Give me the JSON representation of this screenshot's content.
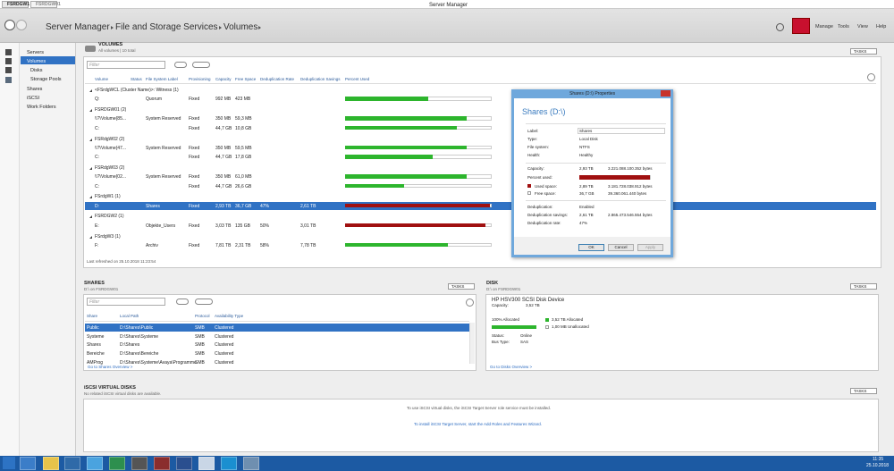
{
  "titlebar": {
    "tabs": [
      "FSRDGW1",
      "FSRDGW01"
    ],
    "title": "Server Manager"
  },
  "header": {
    "breadcrumb": [
      "Server Manager",
      "File and Storage Services",
      "Volumes"
    ],
    "menu": [
      "Manage",
      "Tools",
      "View",
      "Help"
    ]
  },
  "nav": {
    "items": [
      "Servers",
      "Volumes",
      "Disks",
      "Storage Pools",
      "Shares",
      "iSCSI",
      "Work Folders"
    ]
  },
  "volumes": {
    "title": "VOLUMES",
    "subtitle": "All volumes | 10 total",
    "tasks": "TASKS",
    "filter": "Filter",
    "columns": [
      "Volume",
      "Status",
      "File System Label",
      "Provisioning",
      "Capacity",
      "Free Space",
      "Deduplication Rate",
      "Deduplication Savings",
      "Percent Used"
    ],
    "groups": [
      {
        "name": "<FSrdgWCL (Cluster Name)>: Witness (1)",
        "rows": [
          {
            "volume": "Q:",
            "label": "Quorum",
            "provisioning": "Fixed",
            "capacity": "992 MB",
            "free": "423 MB",
            "percent_used": 57
          }
        ]
      },
      {
        "name": "FSRDGW01 (2)",
        "rows": [
          {
            "volume": "\\\\?\\Volume{85...",
            "label": "System Reserved",
            "provisioning": "Fixed",
            "capacity": "350 MB",
            "free": "59,3 MB",
            "percent_used": 83
          },
          {
            "volume": "C:",
            "provisioning": "Fixed",
            "capacity": "44,7 GB",
            "free": "10,8 GB",
            "percent_used": 76
          }
        ]
      },
      {
        "name": "FSRdgW02 (2)",
        "rows": [
          {
            "volume": "\\\\?\\Volume{47...",
            "label": "System Reserved",
            "provisioning": "Fixed",
            "capacity": "350 MB",
            "free": "59,5 MB",
            "percent_used": 83
          },
          {
            "volume": "C:",
            "provisioning": "Fixed",
            "capacity": "44,7 GB",
            "free": "17,8 GB",
            "percent_used": 60
          }
        ]
      },
      {
        "name": "FSRdgW03 (2)",
        "rows": [
          {
            "volume": "\\\\?\\Volume{02...",
            "label": "System Reserved",
            "provisioning": "Fixed",
            "capacity": "350 MB",
            "free": "61,0 MB",
            "percent_used": 83
          },
          {
            "volume": "C:",
            "provisioning": "Fixed",
            "capacity": "44,7 GB",
            "free": "26,6 GB",
            "percent_used": 40
          }
        ]
      },
      {
        "name": "FSrdgW1 (1)",
        "rows": [
          {
            "volume": "D:",
            "label": "Shares",
            "provisioning": "Fixed",
            "capacity": "2,93 TB",
            "free": "36,7 GB",
            "dedup_rate": "47%",
            "dedup_savings": "2,61 TB",
            "percent_used": 99
          }
        ]
      },
      {
        "name": "FSRDGW2 (1)",
        "rows": [
          {
            "volume": "E:",
            "label": "Objekte_Users",
            "provisioning": "Fixed",
            "capacity": "3,03 TB",
            "free": "135 GB",
            "dedup_rate": "50%",
            "dedup_savings": "3,01 TB",
            "percent_used": 96
          }
        ]
      },
      {
        "name": "FSrdgW3 (1)",
        "rows": [
          {
            "volume": "F:",
            "label": "Archiv",
            "provisioning": "Fixed",
            "capacity": "7,81 TB",
            "free": "2,31 TB",
            "dedup_rate": "58%",
            "dedup_savings": "7,78 TB",
            "percent_used": 70
          }
        ]
      }
    ],
    "footer": "Last refreshed on 25.10.2018 11:23:54"
  },
  "properties_dialog": {
    "title": "Shares (D:\\) Properties",
    "heading": "Shares (D:\\)",
    "fields": [
      {
        "label": "Label:",
        "value": "Shares"
      },
      {
        "label": "Type:",
        "value": "Local Disk"
      },
      {
        "label": "File system:",
        "value": "NTFS"
      },
      {
        "label": "Health:",
        "value": "Healthy"
      }
    ],
    "capacity": {
      "label": "Capacity:",
      "value": "2,93 TB",
      "bytes": "3.221.088.100.352 bytes"
    },
    "percent_used": {
      "label": "Percent used:",
      "value": 99
    },
    "used": {
      "label": "Used space:",
      "value": "2,89 TB",
      "bytes": "3.181.728.038.912 bytes"
    },
    "free": {
      "label": "Free space:",
      "value": "36,7 GB",
      "bytes": "39.360.061.440 bytes"
    },
    "dedup": [
      {
        "label": "Deduplication:",
        "value": "Enabled"
      },
      {
        "label": "Deduplication savings:",
        "value": "2,61 TB",
        "bytes": "2.865.473.546.554 bytes"
      },
      {
        "label": "Deduplication rate:",
        "value": "47%"
      }
    ],
    "buttons": [
      "OK",
      "Cancel",
      "Apply"
    ]
  },
  "shares": {
    "title": "SHARES",
    "subtitle": "D:\\ on FSRDGW01",
    "tasks": "TASKS",
    "filter": "Filter",
    "columns": [
      "Share",
      "Local Path",
      "Protocol",
      "Availability Type"
    ],
    "rows": [
      [
        "Public",
        "D:\\Shares\\Public",
        "SMB",
        "Clustered"
      ],
      [
        "Systeme",
        "D:\\Shares\\Systeme",
        "SMB",
        "Clustered"
      ],
      [
        "Shares",
        "D:\\Shares",
        "SMB",
        "Clustered"
      ],
      [
        "Bereiche",
        "D:\\Shares\\Bereiche",
        "SMB",
        "Clustered"
      ],
      [
        "AMProg",
        "D:\\Shares\\Systeme\\Avaya\\Programme",
        "SMB",
        "Clustered"
      ]
    ],
    "link": "Go to Shares Overview >"
  },
  "disk": {
    "title": "DISK",
    "subtitle": "D:\\ on FSRDGW01",
    "tasks": "TASKS",
    "device": "HP HSV300 SCSI Disk Device",
    "capacity_label": "Capacity:",
    "capacity": "3,52 TB",
    "allocated_bar": {
      "value": 100,
      "label": "100% Allocated"
    },
    "allocated": "3,52 TB Allocated",
    "unallocated": "1,00 MB Unallocated",
    "status_label": "Status:",
    "status": "Online",
    "bus_label": "Bus Type:",
    "bus": "SAS",
    "link": "Go to Disks Overview >"
  },
  "iscsi": {
    "title": "iSCSI VIRTUAL DISKS",
    "subtitle": "No related iSCSI virtual disks are available.",
    "tasks": "TASKS",
    "message": "To use iSCSI virtual disks, the iSCSI Target Server role service must be installed.",
    "link": "To install iSCSI Target Server, start the Add Roles and Features Wizard."
  },
  "taskbar": {
    "time": "11:35",
    "date": "25.10.2018"
  }
}
